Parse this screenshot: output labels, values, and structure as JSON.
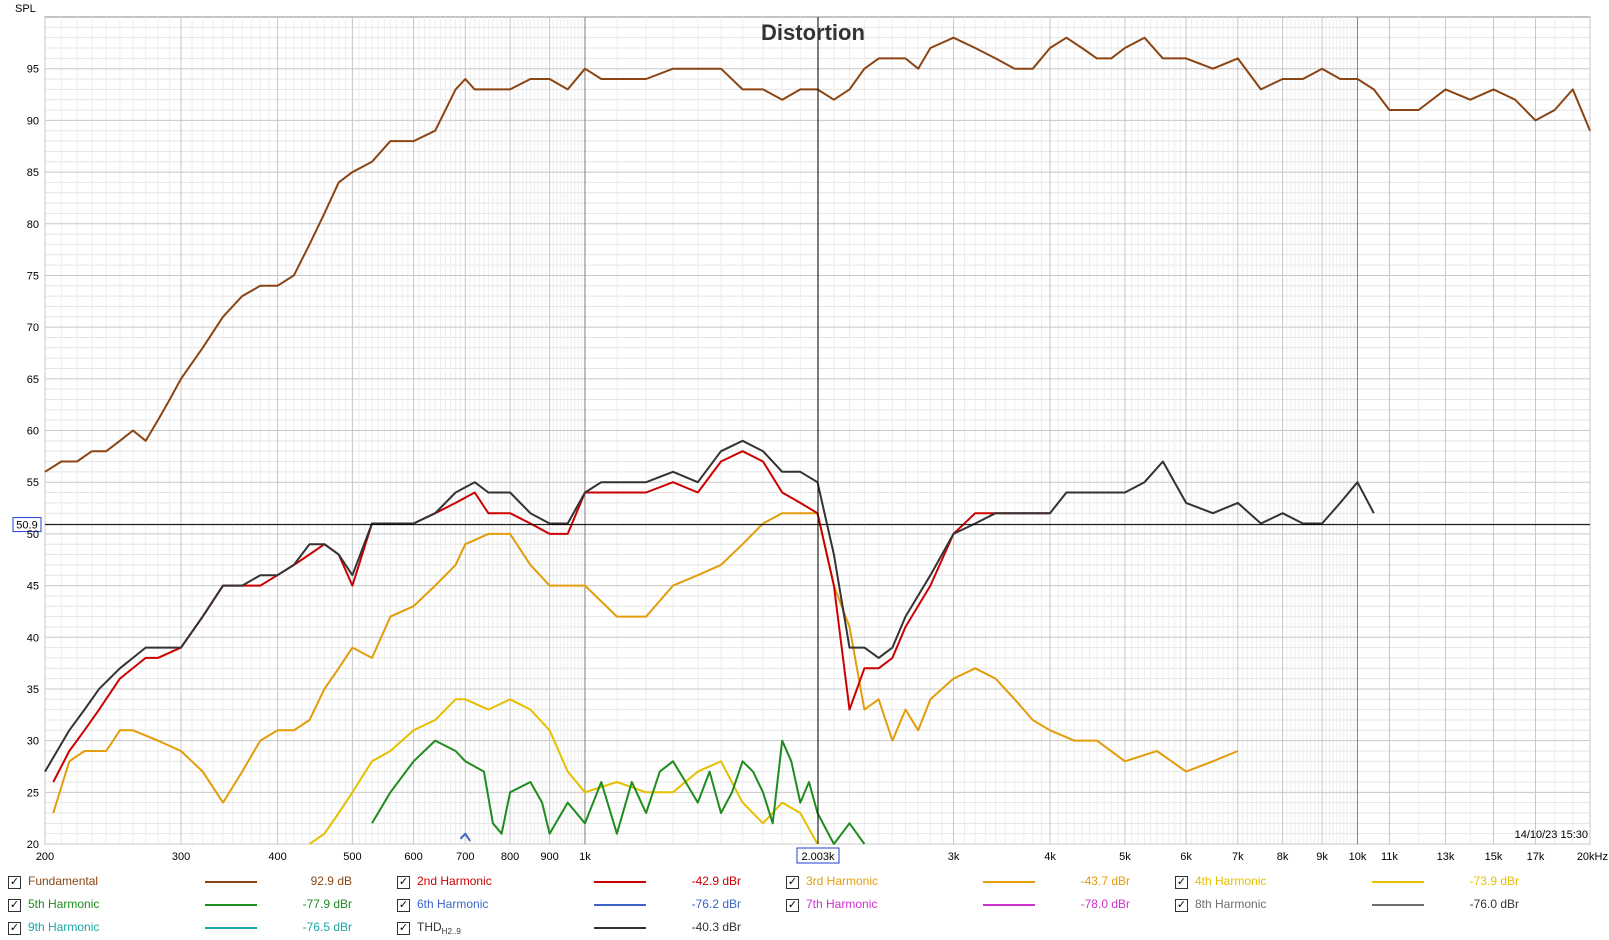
{
  "chart_data": {
    "type": "line",
    "title": "Distortion",
    "ylabel": "SPL",
    "timestamp": "14/10/23 15:30",
    "xscale": "log",
    "xlim": [
      200,
      20000
    ],
    "ylim": [
      20,
      100
    ],
    "yticks": [
      20,
      25,
      30,
      35,
      40,
      45,
      50,
      55,
      60,
      65,
      70,
      75,
      80,
      85,
      90,
      95
    ],
    "xticks": [
      {
        "v": 200,
        "label": "200"
      },
      {
        "v": 300,
        "label": "300"
      },
      {
        "v": 400,
        "label": "400"
      },
      {
        "v": 500,
        "label": "500"
      },
      {
        "v": 600,
        "label": "600"
      },
      {
        "v": 700,
        "label": "700"
      },
      {
        "v": 800,
        "label": "800"
      },
      {
        "v": 900,
        "label": "900"
      },
      {
        "v": 1000,
        "label": "1k"
      },
      {
        "v": 3000,
        "label": "3k"
      },
      {
        "v": 4000,
        "label": "4k"
      },
      {
        "v": 5000,
        "label": "5k"
      },
      {
        "v": 6000,
        "label": "6k"
      },
      {
        "v": 7000,
        "label": "7k"
      },
      {
        "v": 8000,
        "label": "8k"
      },
      {
        "v": 9000,
        "label": "9k"
      },
      {
        "v": 10000,
        "label": "10k"
      },
      {
        "v": 11000,
        "label": "11k"
      },
      {
        "v": 13000,
        "label": "13k"
      },
      {
        "v": 15000,
        "label": "15k"
      },
      {
        "v": 17000,
        "label": "17k"
      },
      {
        "v": 20000,
        "label": "20kHz"
      }
    ],
    "grid": true,
    "cursor": {
      "x": 2003,
      "x_label": "2.003k",
      "y": 50.9,
      "y_label": "50.9"
    },
    "series": [
      {
        "name": "Fundamental",
        "color": "#8b4513",
        "value_label": "92.9 dB",
        "x": [
          200,
          210,
          220,
          230,
          240,
          250,
          260,
          270,
          280,
          290,
          300,
          320,
          340,
          360,
          380,
          400,
          420,
          440,
          460,
          480,
          500,
          530,
          560,
          600,
          640,
          680,
          700,
          720,
          750,
          800,
          850,
          900,
          950,
          1000,
          1050,
          1100,
          1200,
          1300,
          1400,
          1500,
          1600,
          1700,
          1800,
          1900,
          2000,
          2100,
          2200,
          2300,
          2400,
          2500,
          2600,
          2700,
          2800,
          3000,
          3200,
          3400,
          3600,
          3800,
          4000,
          4200,
          4400,
          4600,
          4800,
          5000,
          5300,
          5600,
          6000,
          6500,
          7000,
          7500,
          8000,
          8500,
          9000,
          9500,
          10000,
          10500,
          11000,
          11500,
          12000,
          13000,
          14000,
          15000,
          16000,
          17000,
          18000,
          19000,
          20000
        ],
        "y": [
          56,
          57,
          57,
          58,
          58,
          59,
          60,
          59,
          61,
          63,
          65,
          68,
          71,
          73,
          74,
          74,
          75,
          78,
          81,
          84,
          85,
          86,
          88,
          88,
          89,
          93,
          94,
          93,
          93,
          93,
          94,
          94,
          93,
          95,
          94,
          94,
          94,
          95,
          95,
          95,
          93,
          93,
          92,
          93,
          93,
          92,
          93,
          95,
          96,
          96,
          96,
          95,
          97,
          98,
          97,
          96,
          95,
          95,
          97,
          98,
          97,
          96,
          96,
          97,
          98,
          96,
          96,
          95,
          96,
          93,
          94,
          94,
          95,
          94,
          94,
          93,
          91,
          91,
          91,
          93,
          92,
          93,
          92,
          90,
          91,
          93,
          89
        ]
      },
      {
        "name": "2nd Harmonic",
        "color": "#cc0000",
        "value_label": "-42.9 dBr",
        "x": [
          205,
          215,
          225,
          235,
          250,
          270,
          280,
          300,
          320,
          340,
          360,
          380,
          400,
          420,
          440,
          460,
          480,
          500,
          530,
          560,
          600,
          640,
          680,
          720,
          750,
          800,
          850,
          900,
          950,
          1000,
          1050,
          1100,
          1200,
          1300,
          1400,
          1500,
          1600,
          1700,
          1800,
          1900,
          2000,
          2100,
          2200,
          2300,
          2400,
          2500,
          2600,
          2800,
          3000,
          3200,
          3400,
          3600,
          3800,
          4000
        ],
        "y": [
          26,
          29,
          31,
          33,
          36,
          38,
          38,
          39,
          42,
          45,
          45,
          45,
          46,
          47,
          48,
          49,
          48,
          45,
          51,
          51,
          51,
          52,
          53,
          54,
          52,
          52,
          51,
          50,
          50,
          54,
          54,
          54,
          54,
          55,
          54,
          57,
          58,
          57,
          54,
          53,
          52,
          45,
          33,
          37,
          37,
          38,
          41,
          45,
          50,
          52,
          52,
          52,
          52,
          52
        ]
      },
      {
        "name": "3rd Harmonic",
        "color": "#e39c0a",
        "value_label": "-43.7 dBr",
        "x": [
          205,
          215,
          225,
          240,
          250,
          260,
          280,
          300,
          320,
          340,
          360,
          380,
          400,
          420,
          440,
          460,
          480,
          500,
          530,
          560,
          600,
          640,
          680,
          700,
          750,
          800,
          850,
          900,
          950,
          1000,
          1100,
          1200,
          1300,
          1400,
          1500,
          1600,
          1700,
          1800,
          1900,
          2000,
          2100,
          2200,
          2300,
          2400,
          2500,
          2600,
          2700,
          2800,
          3000,
          3200,
          3400,
          3600,
          3800,
          4000,
          4300,
          4600,
          5000,
          5500,
          6000,
          6500,
          7000
        ],
        "y": [
          23,
          28,
          29,
          29,
          31,
          31,
          30,
          29,
          27,
          24,
          27,
          30,
          31,
          31,
          32,
          35,
          37,
          39,
          38,
          42,
          43,
          45,
          47,
          49,
          50,
          50,
          47,
          45,
          45,
          45,
          42,
          42,
          45,
          46,
          47,
          49,
          51,
          52,
          52,
          52,
          45,
          41,
          33,
          34,
          30,
          33,
          31,
          34,
          36,
          37,
          36,
          34,
          32,
          31,
          30,
          30,
          28,
          29,
          27,
          28,
          29
        ]
      },
      {
        "name": "4th Harmonic",
        "color": "#e6c000",
        "value_label": "-73.9 dBr",
        "x": [
          440,
          460,
          480,
          500,
          530,
          560,
          600,
          640,
          680,
          700,
          750,
          800,
          850,
          900,
          950,
          1000,
          1100,
          1200,
          1300,
          1400,
          1500,
          1600,
          1700,
          1800,
          1900,
          2000
        ],
        "y": [
          20,
          21,
          23,
          25,
          28,
          29,
          31,
          32,
          34,
          34,
          33,
          34,
          33,
          31,
          27,
          25,
          26,
          25,
          25,
          27,
          28,
          24,
          22,
          24,
          23,
          20
        ]
      },
      {
        "name": "5th Harmonic",
        "color": "#1e8c1e",
        "value_label": "-77.9 dBr",
        "x": [
          530,
          560,
          600,
          640,
          680,
          700,
          740,
          760,
          780,
          800,
          850,
          880,
          900,
          950,
          1000,
          1050,
          1100,
          1150,
          1200,
          1250,
          1300,
          1350,
          1400,
          1450,
          1500,
          1550,
          1600,
          1650,
          1700,
          1750,
          1800,
          1850,
          1900,
          1950,
          2000,
          2100,
          2200,
          2300
        ],
        "y": [
          22,
          25,
          28,
          30,
          29,
          28,
          27,
          22,
          21,
          25,
          26,
          24,
          21,
          24,
          22,
          26,
          21,
          26,
          23,
          27,
          28,
          26,
          24,
          27,
          23,
          25,
          28,
          27,
          25,
          22,
          30,
          28,
          24,
          26,
          23,
          20,
          22,
          20
        ]
      },
      {
        "name": "6th Harmonic",
        "color": "#3c64c8",
        "value_label": "-76.2 dBr",
        "x": [
          690,
          700,
          710
        ],
        "y": [
          20.5,
          21,
          20.3
        ]
      },
      {
        "name": "7th Harmonic",
        "color": "#cc33cc",
        "value_label": "-78.0 dBr",
        "x": [],
        "y": []
      },
      {
        "name": "8th Harmonic",
        "color": "#6e6e6e",
        "value_label": "-76.0 dBr",
        "x": [],
        "y": []
      },
      {
        "name": "9th Harmonic",
        "color": "#1aa7a7",
        "value_label": "-76.5 dBr",
        "x": [],
        "y": []
      },
      {
        "name": "THD",
        "name_sub": "H2..9",
        "color": "#333333",
        "value_label": "-40.3 dBr",
        "x": [
          200,
          215,
          225,
          235,
          250,
          270,
          280,
          300,
          320,
          340,
          360,
          380,
          400,
          420,
          440,
          460,
          480,
          500,
          530,
          560,
          600,
          640,
          680,
          720,
          750,
          800,
          850,
          900,
          950,
          1000,
          1050,
          1100,
          1200,
          1300,
          1400,
          1500,
          1600,
          1700,
          1800,
          1900,
          2000,
          2100,
          2200,
          2300,
          2400,
          2500,
          2600,
          2800,
          3000,
          3200,
          3400,
          3600,
          3800,
          4000,
          4200,
          4500,
          4800,
          5000,
          5300,
          5600,
          6000,
          6500,
          7000,
          7500,
          8000,
          8500,
          9000,
          9500,
          10000,
          10500
        ],
        "y": [
          27,
          31,
          33,
          35,
          37,
          39,
          39,
          39,
          42,
          45,
          45,
          46,
          46,
          47,
          49,
          49,
          48,
          46,
          51,
          51,
          51,
          52,
          54,
          55,
          54,
          54,
          52,
          51,
          51,
          54,
          55,
          55,
          55,
          56,
          55,
          58,
          59,
          58,
          56,
          56,
          55,
          48,
          39,
          39,
          38,
          39,
          42,
          46,
          50,
          51,
          52,
          52,
          52,
          52,
          54,
          54,
          54,
          54,
          55,
          57,
          53,
          52,
          53,
          51,
          52,
          51,
          51,
          53,
          55,
          52
        ]
      }
    ]
  },
  "legend_order": [
    0,
    1,
    2,
    3,
    4,
    5,
    6,
    7,
    8,
    9
  ]
}
